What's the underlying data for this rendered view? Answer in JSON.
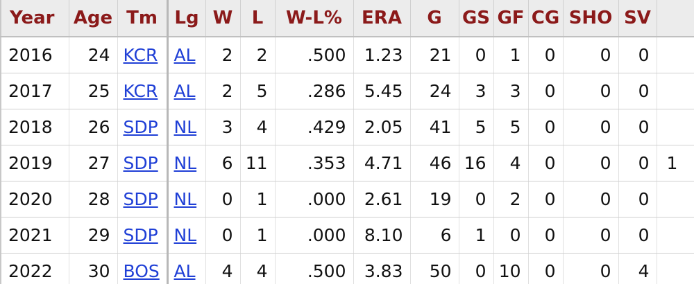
{
  "table": {
    "headers": [
      "Year",
      "Age",
      "Tm",
      "Lg",
      "W",
      "L",
      "W-L%",
      "ERA",
      "G",
      "GS",
      "GF",
      "CG",
      "SHO",
      "SV",
      ""
    ],
    "rows": [
      [
        "2016",
        "24",
        "KCR",
        "AL",
        "2",
        "2",
        ".500",
        "1.23",
        "21",
        "0",
        "1",
        "0",
        "0",
        "0",
        ""
      ],
      [
        "2017",
        "25",
        "KCR",
        "AL",
        "2",
        "5",
        ".286",
        "5.45",
        "24",
        "3",
        "3",
        "0",
        "0",
        "0",
        ""
      ],
      [
        "2018",
        "26",
        "SDP",
        "NL",
        "3",
        "4",
        ".429",
        "2.05",
        "41",
        "5",
        "5",
        "0",
        "0",
        "0",
        ""
      ],
      [
        "2019",
        "27",
        "SDP",
        "NL",
        "6",
        "11",
        ".353",
        "4.71",
        "46",
        "16",
        "4",
        "0",
        "0",
        "0",
        "1"
      ],
      [
        "2020",
        "28",
        "SDP",
        "NL",
        "0",
        "1",
        ".000",
        "2.61",
        "19",
        "0",
        "2",
        "0",
        "0",
        "0",
        ""
      ],
      [
        "2021",
        "29",
        "SDP",
        "NL",
        "0",
        "1",
        ".000",
        "8.10",
        "6",
        "1",
        "0",
        "0",
        "0",
        "0",
        ""
      ],
      [
        "2022",
        "30",
        "BOS",
        "AL",
        "4",
        "4",
        ".500",
        "3.83",
        "50",
        "0",
        "10",
        "0",
        "0",
        "4",
        ""
      ]
    ]
  },
  "colors": {
    "header_text": "#8b1a1a",
    "link": "#1f3fd6"
  }
}
